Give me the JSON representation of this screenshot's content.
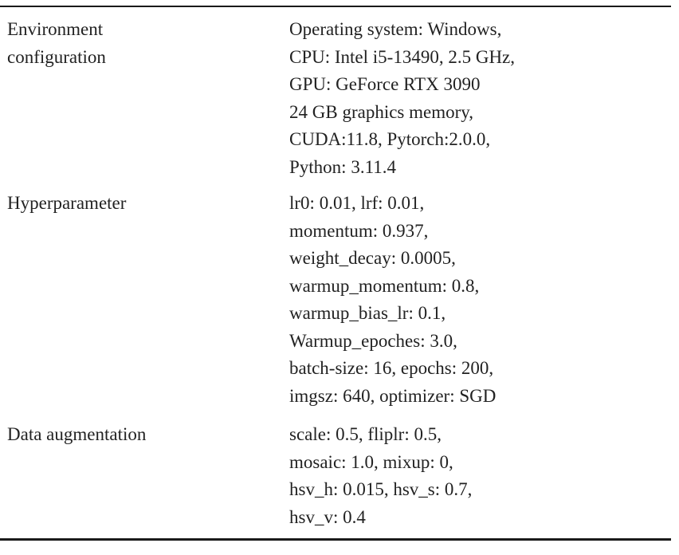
{
  "table": {
    "rows": [
      {
        "label": [
          "Environment",
          "configuration"
        ],
        "values": [
          "Operating system: Windows,",
          "CPU: Intel i5-13490, 2.5 GHz,",
          "GPU: GeForce RTX 3090",
          "24 GB graphics memory,",
          "CUDA:11.8, Pytorch:2.0.0,",
          "Python: 3.11.4"
        ]
      },
      {
        "label": [
          "Hyperparameter"
        ],
        "values": [
          "lr0: 0.01, lrf: 0.01,",
          "momentum: 0.937,",
          "weight_decay: 0.0005,",
          "warmup_momentum: 0.8,",
          "warmup_bias_lr: 0.1,",
          "Warmup_epoches: 3.0,",
          "batch-size: 16, epochs: 200,",
          "imgsz: 640, optimizer: SGD"
        ]
      },
      {
        "label": [
          "Data augmentation"
        ],
        "values": [
          "scale: 0.5, fliplr: 0.5,",
          "mosaic: 1.0, mixup: 0,",
          "hsv_h: 0.015, hsv_s: 0.7,",
          "hsv_v: 0.4"
        ]
      }
    ]
  }
}
